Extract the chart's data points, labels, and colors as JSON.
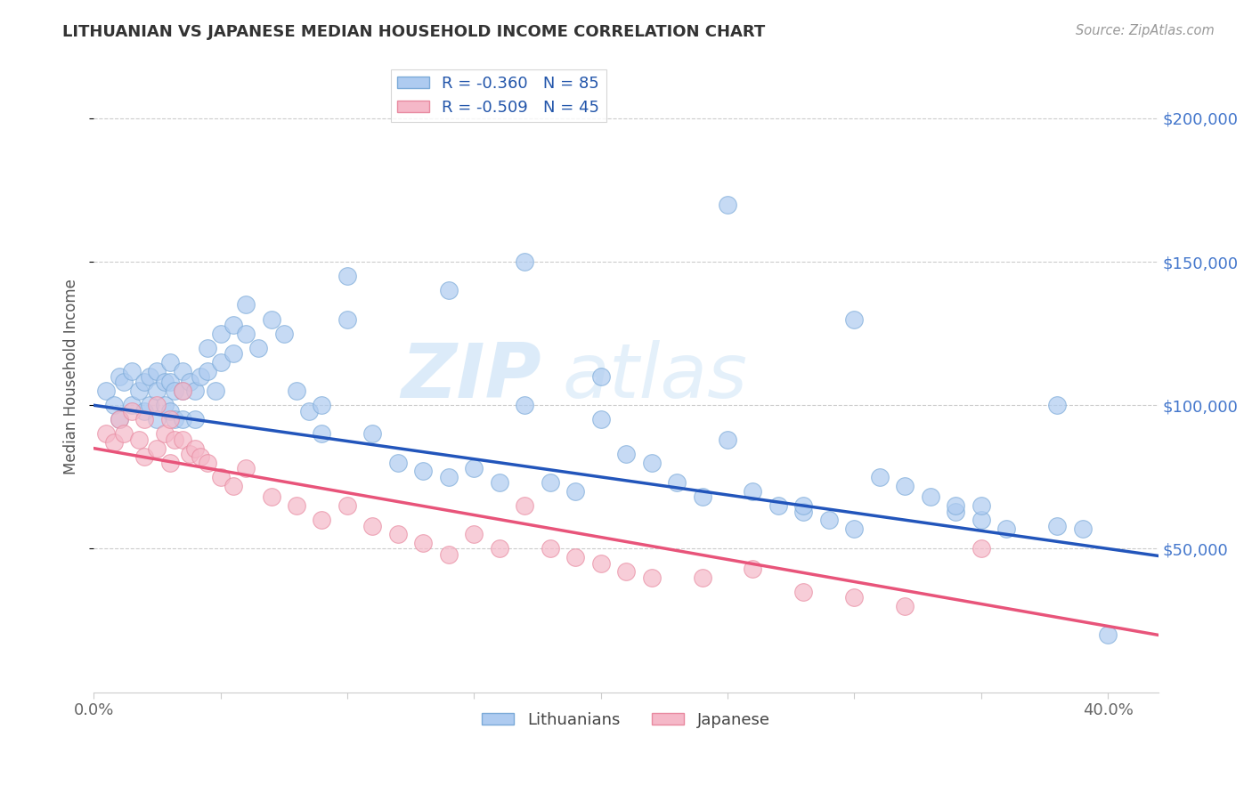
{
  "title": "LITHUANIAN VS JAPANESE MEDIAN HOUSEHOLD INCOME CORRELATION CHART",
  "source": "Source: ZipAtlas.com",
  "ylabel": "Median Household Income",
  "xlim": [
    0.0,
    0.42
  ],
  "ylim": [
    0,
    220000
  ],
  "xticks": [
    0.0,
    0.05,
    0.1,
    0.15,
    0.2,
    0.25,
    0.3,
    0.35,
    0.4
  ],
  "xticklabels": [
    "0.0%",
    "",
    "",
    "",
    "",
    "",
    "",
    "",
    "40.0%"
  ],
  "yticks_right": [
    50000,
    100000,
    150000,
    200000
  ],
  "ytick_labels_right": [
    "$50,000",
    "$100,000",
    "$150,000",
    "$200,000"
  ],
  "blue_color": "#aecbf0",
  "pink_color": "#f5b8c8",
  "blue_edge_color": "#7baad8",
  "pink_edge_color": "#e88aa0",
  "blue_line_color": "#2255bb",
  "pink_line_color": "#e8547a",
  "blue_R": -0.36,
  "blue_N": 85,
  "pink_R": -0.509,
  "pink_N": 45,
  "legend_label_blue": "Lithuanians",
  "legend_label_pink": "Japanese",
  "watermark_zip": "ZIP",
  "watermark_atlas": "atlas",
  "blue_intercept": 100000,
  "blue_slope": -125000,
  "pink_intercept": 85000,
  "pink_slope": -155000,
  "blue_scatter_x": [
    0.005,
    0.008,
    0.01,
    0.01,
    0.012,
    0.015,
    0.015,
    0.018,
    0.02,
    0.02,
    0.022,
    0.022,
    0.025,
    0.025,
    0.025,
    0.028,
    0.028,
    0.03,
    0.03,
    0.03,
    0.032,
    0.032,
    0.035,
    0.035,
    0.035,
    0.038,
    0.04,
    0.04,
    0.042,
    0.045,
    0.045,
    0.048,
    0.05,
    0.05,
    0.055,
    0.055,
    0.06,
    0.06,
    0.065,
    0.07,
    0.075,
    0.08,
    0.085,
    0.09,
    0.09,
    0.1,
    0.1,
    0.11,
    0.12,
    0.13,
    0.14,
    0.15,
    0.16,
    0.17,
    0.18,
    0.19,
    0.2,
    0.21,
    0.22,
    0.23,
    0.24,
    0.25,
    0.26,
    0.27,
    0.28,
    0.29,
    0.3,
    0.31,
    0.32,
    0.33,
    0.34,
    0.35,
    0.36,
    0.38,
    0.14,
    0.28,
    0.3,
    0.34,
    0.38,
    0.39,
    0.4,
    0.2,
    0.25,
    0.17,
    0.35
  ],
  "blue_scatter_y": [
    105000,
    100000,
    110000,
    95000,
    108000,
    112000,
    100000,
    105000,
    108000,
    98000,
    110000,
    100000,
    112000,
    105000,
    95000,
    108000,
    100000,
    115000,
    108000,
    98000,
    105000,
    95000,
    112000,
    105000,
    95000,
    108000,
    105000,
    95000,
    110000,
    120000,
    112000,
    105000,
    125000,
    115000,
    128000,
    118000,
    135000,
    125000,
    120000,
    130000,
    125000,
    105000,
    98000,
    100000,
    90000,
    145000,
    130000,
    90000,
    80000,
    77000,
    75000,
    78000,
    73000,
    100000,
    73000,
    70000,
    110000,
    83000,
    80000,
    73000,
    68000,
    88000,
    70000,
    65000,
    63000,
    60000,
    57000,
    75000,
    72000,
    68000,
    63000,
    60000,
    57000,
    58000,
    140000,
    65000,
    130000,
    65000,
    100000,
    57000,
    20000,
    95000,
    170000,
    150000,
    65000
  ],
  "pink_scatter_x": [
    0.005,
    0.008,
    0.01,
    0.012,
    0.015,
    0.018,
    0.02,
    0.02,
    0.025,
    0.025,
    0.028,
    0.03,
    0.03,
    0.032,
    0.035,
    0.035,
    0.038,
    0.04,
    0.042,
    0.045,
    0.05,
    0.055,
    0.06,
    0.07,
    0.08,
    0.09,
    0.1,
    0.11,
    0.12,
    0.13,
    0.14,
    0.15,
    0.16,
    0.17,
    0.18,
    0.19,
    0.2,
    0.21,
    0.22,
    0.24,
    0.26,
    0.28,
    0.3,
    0.32,
    0.35
  ],
  "pink_scatter_y": [
    90000,
    87000,
    95000,
    90000,
    98000,
    88000,
    95000,
    82000,
    100000,
    85000,
    90000,
    95000,
    80000,
    88000,
    105000,
    88000,
    83000,
    85000,
    82000,
    80000,
    75000,
    72000,
    78000,
    68000,
    65000,
    60000,
    65000,
    58000,
    55000,
    52000,
    48000,
    55000,
    50000,
    65000,
    50000,
    47000,
    45000,
    42000,
    40000,
    40000,
    43000,
    35000,
    33000,
    30000,
    50000
  ]
}
